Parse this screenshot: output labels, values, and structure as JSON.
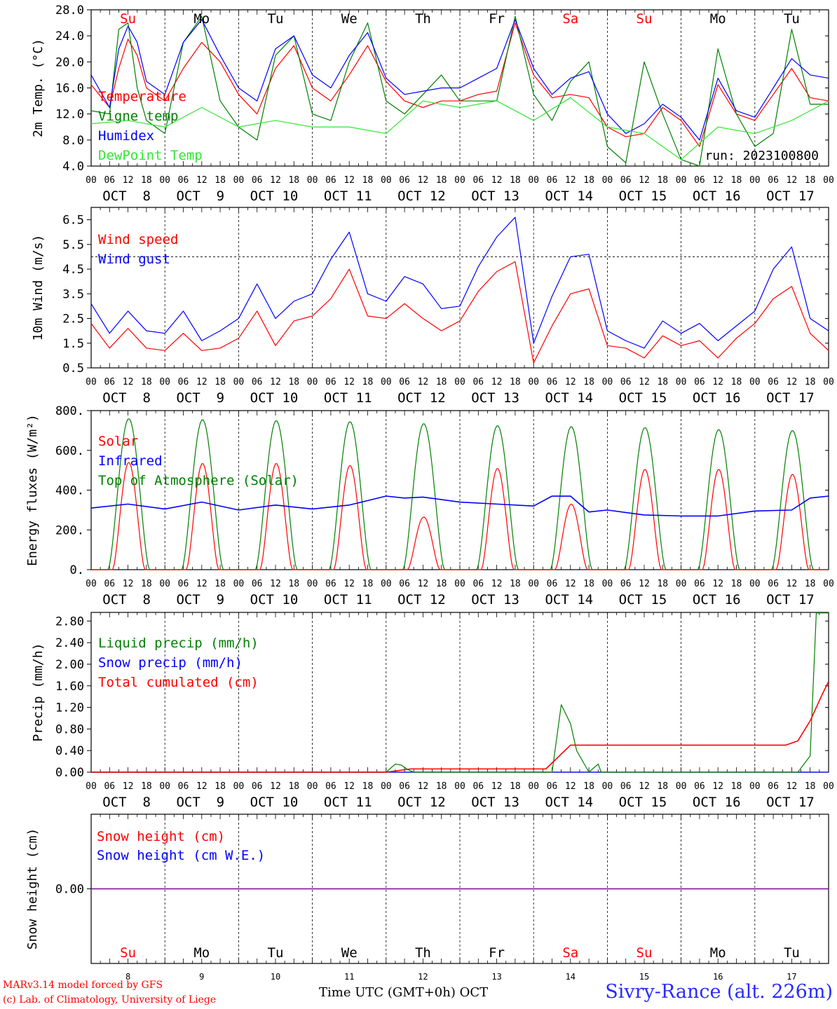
{
  "days": {
    "weekday": [
      "Su",
      "Mo",
      "Tu",
      "We",
      "Th",
      "Fr",
      "Sa",
      "Su",
      "Mo",
      "Tu"
    ],
    "weekend_flags": [
      true,
      false,
      false,
      false,
      false,
      false,
      true,
      true,
      false,
      false
    ],
    "dates": [
      "OCT  8",
      "OCT  9",
      "OCT 10",
      "OCT 11",
      "OCT 12",
      "OCT 13",
      "OCT 14",
      "OCT 15",
      "OCT 16",
      "OCT 17"
    ],
    "date_numbers": [
      "8",
      "9",
      "10",
      "11",
      "12",
      "13",
      "14",
      "15",
      "16",
      "17"
    ],
    "hour_ticks": [
      "00",
      "06",
      "12",
      "18"
    ],
    "end_tick": "00"
  },
  "colors": {
    "red": "#ff0000",
    "green": "#008000",
    "blue": "#0000ff",
    "lightgreen": "#33e633",
    "purple": "#8000a0"
  },
  "footer": {
    "model": "MARv3.14 model forced by GFS",
    "credit": "(c) Lab. of Climatology, University of Liege",
    "xlabel": "Time UTC (GMT+0h) OCT",
    "station": "Sivry-Rance (alt. 226m)"
  },
  "chart_data": [
    {
      "type": "line",
      "ylabel": "2m Temp. (°C)",
      "ylim": [
        4,
        28
      ],
      "yticks": [
        "4.0",
        "8.0",
        "12.0",
        "16.0",
        "20.0",
        "24.0",
        "28.0"
      ],
      "annotation": "run: 2023100800",
      "x_unit": "hours since OCT 8 00 UTC",
      "series": [
        {
          "name": "Temperature",
          "color": "red",
          "x": [
            0,
            6,
            9,
            12,
            15,
            18,
            24,
            30,
            36,
            42,
            48,
            54,
            60,
            66,
            72,
            78,
            84,
            90,
            96,
            102,
            108,
            114,
            120,
            126,
            132,
            138,
            144,
            150,
            156,
            162,
            168,
            174,
            180,
            186,
            192,
            198,
            204,
            210,
            216,
            222,
            228,
            234,
            240
          ],
          "y": [
            16.5,
            13,
            19,
            23.5,
            21,
            16,
            14,
            19,
            23,
            20,
            15,
            12,
            19,
            22.5,
            16,
            14,
            18,
            22.5,
            17,
            14,
            13,
            14,
            14,
            15,
            15.5,
            26,
            18,
            14.5,
            15,
            14.5,
            10,
            8.5,
            9,
            13,
            11,
            7,
            16.5,
            12,
            11,
            15,
            19,
            14.5,
            14
          ]
        },
        {
          "name": "Vigne temp",
          "color": "green",
          "x": [
            0,
            6,
            9,
            12,
            15,
            18,
            24,
            30,
            36,
            42,
            48,
            54,
            60,
            66,
            72,
            78,
            84,
            90,
            96,
            102,
            108,
            114,
            120,
            126,
            132,
            138,
            144,
            150,
            156,
            162,
            168,
            174,
            180,
            186,
            192,
            198,
            204,
            210,
            216,
            222,
            228,
            234,
            240
          ],
          "y": [
            12.5,
            12,
            25,
            26,
            16,
            11,
            9,
            23,
            27,
            14,
            10,
            8,
            21,
            24,
            12,
            11,
            20,
            26,
            14,
            12,
            15,
            18,
            14,
            14,
            14,
            27,
            15,
            11,
            17,
            20,
            7,
            4.5,
            20,
            12,
            5,
            4,
            22,
            12,
            7,
            9,
            25,
            13.5,
            13.5
          ]
        },
        {
          "name": "Humidex",
          "color": "blue",
          "x": [
            0,
            6,
            9,
            12,
            15,
            18,
            24,
            30,
            36,
            42,
            48,
            54,
            60,
            66,
            72,
            78,
            84,
            90,
            96,
            102,
            108,
            114,
            120,
            126,
            132,
            138,
            144,
            150,
            156,
            162,
            168,
            174,
            180,
            186,
            192,
            198,
            204,
            210,
            216,
            222,
            228,
            234,
            240
          ],
          "y": [
            18,
            13,
            22,
            25.5,
            23,
            17,
            15,
            23,
            26.5,
            21,
            16,
            14,
            22,
            24,
            18,
            16,
            21,
            24.5,
            17.5,
            15,
            15.5,
            16,
            16,
            17.5,
            19,
            26.5,
            19,
            15,
            17.5,
            18.5,
            12,
            9,
            10.5,
            13.5,
            11.5,
            8,
            17.5,
            12.5,
            11.5,
            16,
            20.5,
            18,
            17.5
          ]
        },
        {
          "name": "DewPoint Temp",
          "color": "lightgreen",
          "x": [
            0,
            12,
            24,
            36,
            48,
            60,
            72,
            84,
            96,
            108,
            120,
            132,
            144,
            156,
            168,
            180,
            192,
            204,
            216,
            228,
            240
          ],
          "y": [
            10.5,
            11,
            10,
            13,
            10,
            11,
            10,
            10,
            9,
            14,
            13,
            14,
            11,
            14.5,
            10,
            9,
            5,
            10,
            9,
            11,
            14
          ]
        }
      ]
    },
    {
      "type": "line",
      "ylabel": "10m Wind (m/s)",
      "ylim": [
        0.5,
        7
      ],
      "yticks": [
        "0.5",
        "1.5",
        "2.5",
        "3.5",
        "4.5",
        "5.5",
        "6.5"
      ],
      "reference_line": 5,
      "series": [
        {
          "name": "Wind speed",
          "color": "red",
          "x": [
            0,
            6,
            12,
            18,
            24,
            30,
            36,
            42,
            48,
            54,
            60,
            66,
            72,
            78,
            84,
            90,
            96,
            102,
            108,
            114,
            120,
            126,
            132,
            138,
            144,
            150,
            156,
            162,
            168,
            174,
            180,
            186,
            192,
            198,
            204,
            210,
            216,
            222,
            228,
            234,
            240
          ],
          "y": [
            2.3,
            1.3,
            2.1,
            1.3,
            1.2,
            1.9,
            1.2,
            1.3,
            1.7,
            2.8,
            1.4,
            2.4,
            2.6,
            3.3,
            4.5,
            2.6,
            2.5,
            3.1,
            2.5,
            2,
            2.4,
            3.6,
            4.4,
            4.8,
            0.7,
            2.2,
            3.5,
            3.7,
            1.4,
            1.3,
            0.9,
            1.8,
            1.4,
            1.6,
            0.9,
            1.7,
            2.3,
            3.3,
            3.8,
            1.9,
            1.2
          ]
        },
        {
          "name": "Wind gust",
          "color": "blue",
          "x": [
            0,
            6,
            12,
            18,
            24,
            30,
            36,
            42,
            48,
            54,
            60,
            66,
            72,
            78,
            84,
            90,
            96,
            102,
            108,
            114,
            120,
            126,
            132,
            138,
            144,
            150,
            156,
            162,
            168,
            174,
            180,
            186,
            192,
            198,
            204,
            210,
            216,
            222,
            228,
            234,
            240
          ],
          "y": [
            3.1,
            1.9,
            2.8,
            2,
            1.9,
            2.8,
            1.6,
            2,
            2.5,
            3.9,
            2.5,
            3.2,
            3.5,
            4.9,
            6,
            3.5,
            3.2,
            4.2,
            3.9,
            2.9,
            3,
            4.6,
            5.8,
            6.6,
            1.5,
            3.4,
            5,
            5.1,
            2,
            1.6,
            1.3,
            2.4,
            1.9,
            2.3,
            1.6,
            2.2,
            2.8,
            4.5,
            5.4,
            2.5,
            2
          ]
        }
      ]
    },
    {
      "type": "line",
      "ylabel": "Energy fluxes (W/m²)",
      "ylim": [
        0,
        800
      ],
      "yticks": [
        "0.",
        "200.",
        "400.",
        "600.",
        "800."
      ],
      "series": [
        {
          "name": "Solar",
          "color": "red",
          "peaks": [
            540,
            535,
            535,
            525,
            265,
            510,
            330,
            505,
            505,
            480
          ]
        },
        {
          "name": "Infrared",
          "color": "blue",
          "x": [
            0,
            12,
            24,
            36,
            48,
            60,
            72,
            84,
            96,
            102,
            108,
            120,
            132,
            144,
            150,
            156,
            162,
            168,
            180,
            192,
            204,
            216,
            228,
            234,
            240
          ],
          "y": [
            310,
            330,
            305,
            340,
            300,
            325,
            305,
            325,
            370,
            360,
            365,
            340,
            330,
            320,
            370,
            370,
            290,
            300,
            275,
            270,
            270,
            295,
            300,
            360,
            370
          ]
        },
        {
          "name": "Top of Atmosphere (Solar)",
          "color": "green",
          "peaks": [
            760,
            755,
            750,
            745,
            735,
            725,
            720,
            715,
            705,
            700
          ]
        }
      ]
    },
    {
      "type": "line",
      "ylabel": "Precip (mm/h)",
      "ylim": [
        0,
        2.96
      ],
      "yticks": [
        "0.00",
        "0.40",
        "0.80",
        "1.20",
        "1.60",
        "2.00",
        "2.40",
        "2.80"
      ],
      "series": [
        {
          "name": "Liquid precip (mm/h)",
          "color": "green",
          "x": [
            0,
            96,
            99,
            101,
            103,
            105,
            144,
            150,
            153,
            156,
            158,
            162,
            165,
            166,
            168,
            190,
            230,
            234,
            236,
            240
          ],
          "y": [
            0,
            0,
            0.15,
            0.13,
            0.05,
            0,
            0,
            0,
            1.25,
            0.9,
            0.4,
            0,
            0.15,
            0,
            0,
            0,
            0,
            0.3,
            2.95,
            2.95
          ]
        },
        {
          "name": "Snow precip (mm/h)",
          "color": "blue",
          "x": [
            0,
            240
          ],
          "y": [
            0,
            0
          ]
        },
        {
          "name": "Total cumulated (cm)",
          "color": "red",
          "x": [
            0,
            96,
            104,
            148,
            156,
            240
          ],
          "y": [
            0,
            0,
            0.06,
            0.06,
            0.5,
            0.5
          ],
          "tail_x": [
            226,
            230,
            234,
            238,
            240
          ],
          "tail_y": [
            0.5,
            0.58,
            0.95,
            1.45,
            1.68
          ]
        }
      ]
    },
    {
      "type": "line",
      "ylabel": "Snow height (cm)",
      "yticks": [
        "0.00"
      ],
      "series": [
        {
          "name": "Snow height (cm)",
          "color": "red",
          "x": [
            0,
            240
          ],
          "y": [
            0,
            0
          ]
        },
        {
          "name": "Snow height (cm W.E.)",
          "color": "blue",
          "x": [
            0,
            240
          ],
          "y": [
            0,
            0
          ]
        }
      ]
    }
  ]
}
